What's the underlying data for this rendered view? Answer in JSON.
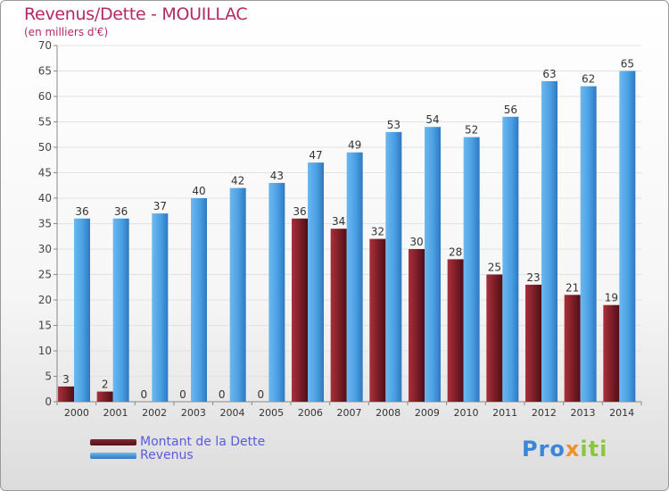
{
  "title": "Revenus/Dette - MOUILLAC",
  "subtitle": "(en milliers d'€)",
  "logo_text": "Proxiti",
  "colors": {
    "debt": "#7b1f2b",
    "revenue": "#4a9fe2",
    "title": "#b42868",
    "legend_text": "#5a5ae0"
  },
  "chart_data": {
    "type": "bar",
    "title": "Revenus/Dette - MOUILLAC",
    "subtitle": "(en milliers d'€)",
    "xlabel": "",
    "ylabel": "",
    "ylim": [
      0,
      70
    ],
    "yticks": [
      0,
      5,
      10,
      15,
      20,
      25,
      30,
      35,
      40,
      45,
      50,
      55,
      60,
      65,
      70
    ],
    "grid": true,
    "legend_position": "bottom-left",
    "categories": [
      "2000",
      "2001",
      "2002",
      "2003",
      "2004",
      "2005",
      "2006",
      "2007",
      "2008",
      "2009",
      "2010",
      "2011",
      "2012",
      "2013",
      "2014"
    ],
    "series": [
      {
        "name": "Montant de la Dette",
        "values": [
          3,
          2,
          0,
          0,
          0,
          0,
          36,
          34,
          32,
          30,
          28,
          25,
          23,
          21,
          19
        ]
      },
      {
        "name": "Revenus",
        "values": [
          36,
          36,
          37,
          40,
          42,
          43,
          47,
          49,
          53,
          54,
          52,
          56,
          63,
          62,
          65
        ]
      }
    ]
  }
}
